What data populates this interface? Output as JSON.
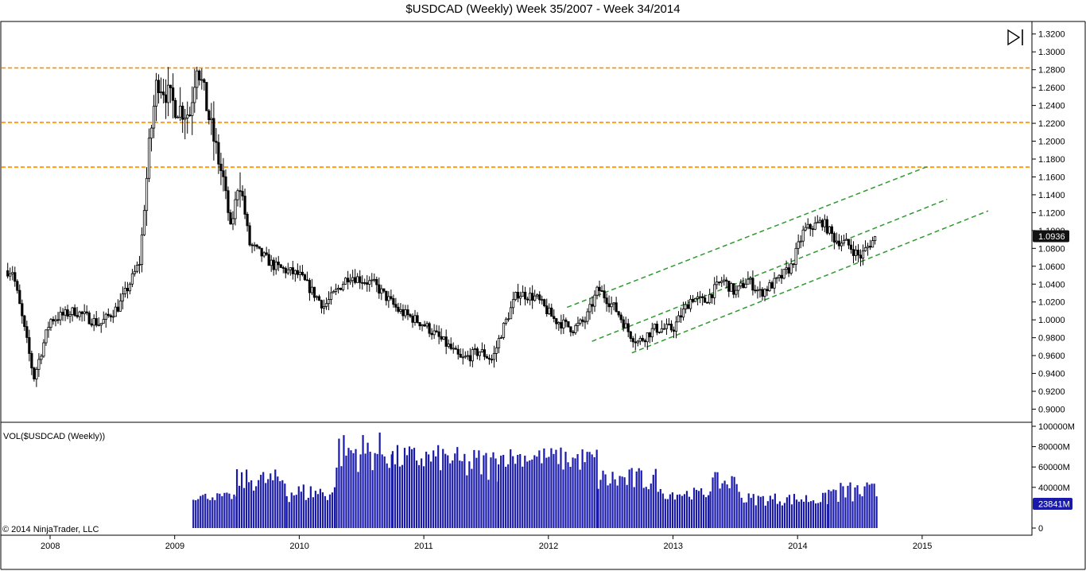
{
  "chart_data": [
    {
      "type": "candlestick",
      "title": "$USDCAD (Weekly)  Week 35/2007 - Week 34/2014",
      "x_tick_labels": [
        "2008",
        "2009",
        "2010",
        "2011",
        "2012",
        "2013",
        "2014",
        "2015"
      ],
      "y_tick_labels": [
        "1.3200",
        "1.3000",
        "1.2800",
        "1.2600",
        "1.2400",
        "1.2200",
        "1.2000",
        "1.1800",
        "1.1600",
        "1.1400",
        "1.1200",
        "1.1000",
        "1.0800",
        "1.0600",
        "1.0400",
        "1.0200",
        "1.0000",
        "0.9800",
        "0.9600",
        "0.9400",
        "0.9200",
        "0.9000"
      ],
      "ylim": [
        0.896,
        1.326
      ],
      "last_price_label": "1.0936",
      "last_price": 1.0936,
      "key_points": [
        {
          "date": 2007.7,
          "price": 1.055
        },
        {
          "date": 2007.8,
          "price": 0.985
        },
        {
          "date": 2007.87,
          "price": 0.935
        },
        {
          "date": 2008.0,
          "price": 1.0
        },
        {
          "date": 2008.2,
          "price": 1.01
        },
        {
          "date": 2008.4,
          "price": 0.995
        },
        {
          "date": 2008.55,
          "price": 1.015
        },
        {
          "date": 2008.62,
          "price": 1.035
        },
        {
          "date": 2008.72,
          "price": 1.065
        },
        {
          "date": 2008.8,
          "price": 1.2
        },
        {
          "date": 2008.86,
          "price": 1.27
        },
        {
          "date": 2009.0,
          "price": 1.24
        },
        {
          "date": 2009.12,
          "price": 1.23
        },
        {
          "date": 2009.18,
          "price": 1.29
        },
        {
          "date": 2009.3,
          "price": 1.21
        },
        {
          "date": 2009.4,
          "price": 1.15
        },
        {
          "date": 2009.45,
          "price": 1.1
        },
        {
          "date": 2009.52,
          "price": 1.16
        },
        {
          "date": 2009.6,
          "price": 1.085
        },
        {
          "date": 2009.8,
          "price": 1.06
        },
        {
          "date": 2010.0,
          "price": 1.05
        },
        {
          "date": 2010.2,
          "price": 1.015
        },
        {
          "date": 2010.4,
          "price": 1.05
        },
        {
          "date": 2010.6,
          "price": 1.04
        },
        {
          "date": 2010.8,
          "price": 1.01
        },
        {
          "date": 2011.0,
          "price": 0.995
        },
        {
          "date": 2011.2,
          "price": 0.97
        },
        {
          "date": 2011.3,
          "price": 0.955
        },
        {
          "date": 2011.45,
          "price": 0.965
        },
        {
          "date": 2011.55,
          "price": 0.955
        },
        {
          "date": 2011.62,
          "price": 0.985
        },
        {
          "date": 2011.75,
          "price": 1.03
        },
        {
          "date": 2011.9,
          "price": 1.025
        },
        {
          "date": 2012.05,
          "price": 1.0
        },
        {
          "date": 2012.2,
          "price": 0.99
        },
        {
          "date": 2012.3,
          "price": 1.0
        },
        {
          "date": 2012.4,
          "price": 1.035
        },
        {
          "date": 2012.55,
          "price": 1.01
        },
        {
          "date": 2012.65,
          "price": 0.985
        },
        {
          "date": 2012.72,
          "price": 0.975
        },
        {
          "date": 2012.85,
          "price": 0.99
        },
        {
          "date": 2013.0,
          "price": 0.99
        },
        {
          "date": 2013.15,
          "price": 1.025
        },
        {
          "date": 2013.25,
          "price": 1.02
        },
        {
          "date": 2013.4,
          "price": 1.045
        },
        {
          "date": 2013.5,
          "price": 1.03
        },
        {
          "date": 2013.6,
          "price": 1.045
        },
        {
          "date": 2013.7,
          "price": 1.03
        },
        {
          "date": 2013.85,
          "price": 1.045
        },
        {
          "date": 2013.95,
          "price": 1.06
        },
        {
          "date": 2014.05,
          "price": 1.1
        },
        {
          "date": 2014.2,
          "price": 1.11
        },
        {
          "date": 2014.3,
          "price": 1.09
        },
        {
          "date": 2014.4,
          "price": 1.085
        },
        {
          "date": 2014.5,
          "price": 1.07
        },
        {
          "date": 2014.58,
          "price": 1.085
        },
        {
          "date": 2014.64,
          "price": 1.094
        }
      ],
      "horizontal_lines": [
        1.282,
        1.221,
        1.171
      ],
      "trend_channel": [
        {
          "start": {
            "date": 2012.15,
            "price": 1.014
          },
          "end": {
            "date": 2015.05,
            "price": 1.172
          }
        },
        {
          "start": {
            "date": 2012.35,
            "price": 0.976
          },
          "end": {
            "date": 2015.2,
            "price": 1.135
          }
        },
        {
          "start": {
            "date": 2012.67,
            "price": 0.963
          },
          "end": {
            "date": 2015.53,
            "price": 1.122
          }
        }
      ],
      "colors": {
        "horizontal_lines": "#ff8c00",
        "trend_channel": "#2e9a2e",
        "candles": "#000000",
        "badge": "#111111"
      }
    },
    {
      "type": "bar",
      "series_label": "VOL($USDCAD (Weekly))",
      "y_tick_labels": [
        "100000M",
        "80000M",
        "60000M",
        "40000M",
        "0"
      ],
      "ylim": [
        0,
        100000
      ],
      "last_volume_label": "23841M",
      "last_volume": 23841,
      "volume_segments": [
        {
          "from": 2009.15,
          "to": 2009.5,
          "range": [
            27000,
            35000
          ]
        },
        {
          "from": 2009.5,
          "to": 2009.9,
          "range": [
            36000,
            58000
          ]
        },
        {
          "from": 2009.9,
          "to": 2010.3,
          "range": [
            25000,
            45000
          ]
        },
        {
          "from": 2010.3,
          "to": 2010.75,
          "range": [
            55000,
            95000
          ]
        },
        {
          "from": 2010.75,
          "to": 2011.25,
          "range": [
            55000,
            82000
          ]
        },
        {
          "from": 2011.25,
          "to": 2011.6,
          "range": [
            45000,
            80000
          ]
        },
        {
          "from": 2011.6,
          "to": 2012.1,
          "range": [
            60000,
            80000
          ]
        },
        {
          "from": 2012.1,
          "to": 2012.4,
          "range": [
            55000,
            80000
          ]
        },
        {
          "from": 2012.4,
          "to": 2012.9,
          "range": [
            35000,
            60000
          ]
        },
        {
          "from": 2012.9,
          "to": 2013.3,
          "range": [
            28000,
            40000
          ]
        },
        {
          "from": 2013.3,
          "to": 2013.55,
          "range": [
            35000,
            55000
          ]
        },
        {
          "from": 2013.55,
          "to": 2014.25,
          "range": [
            22000,
            35000
          ]
        },
        {
          "from": 2014.25,
          "to": 2014.64,
          "range": [
            24000,
            46000
          ]
        }
      ],
      "color": "#1a1aaa"
    }
  ],
  "copyright": "© 2014 NinjaTrader, LLC",
  "icons": {
    "play_to_end": "play-to-end-icon"
  }
}
